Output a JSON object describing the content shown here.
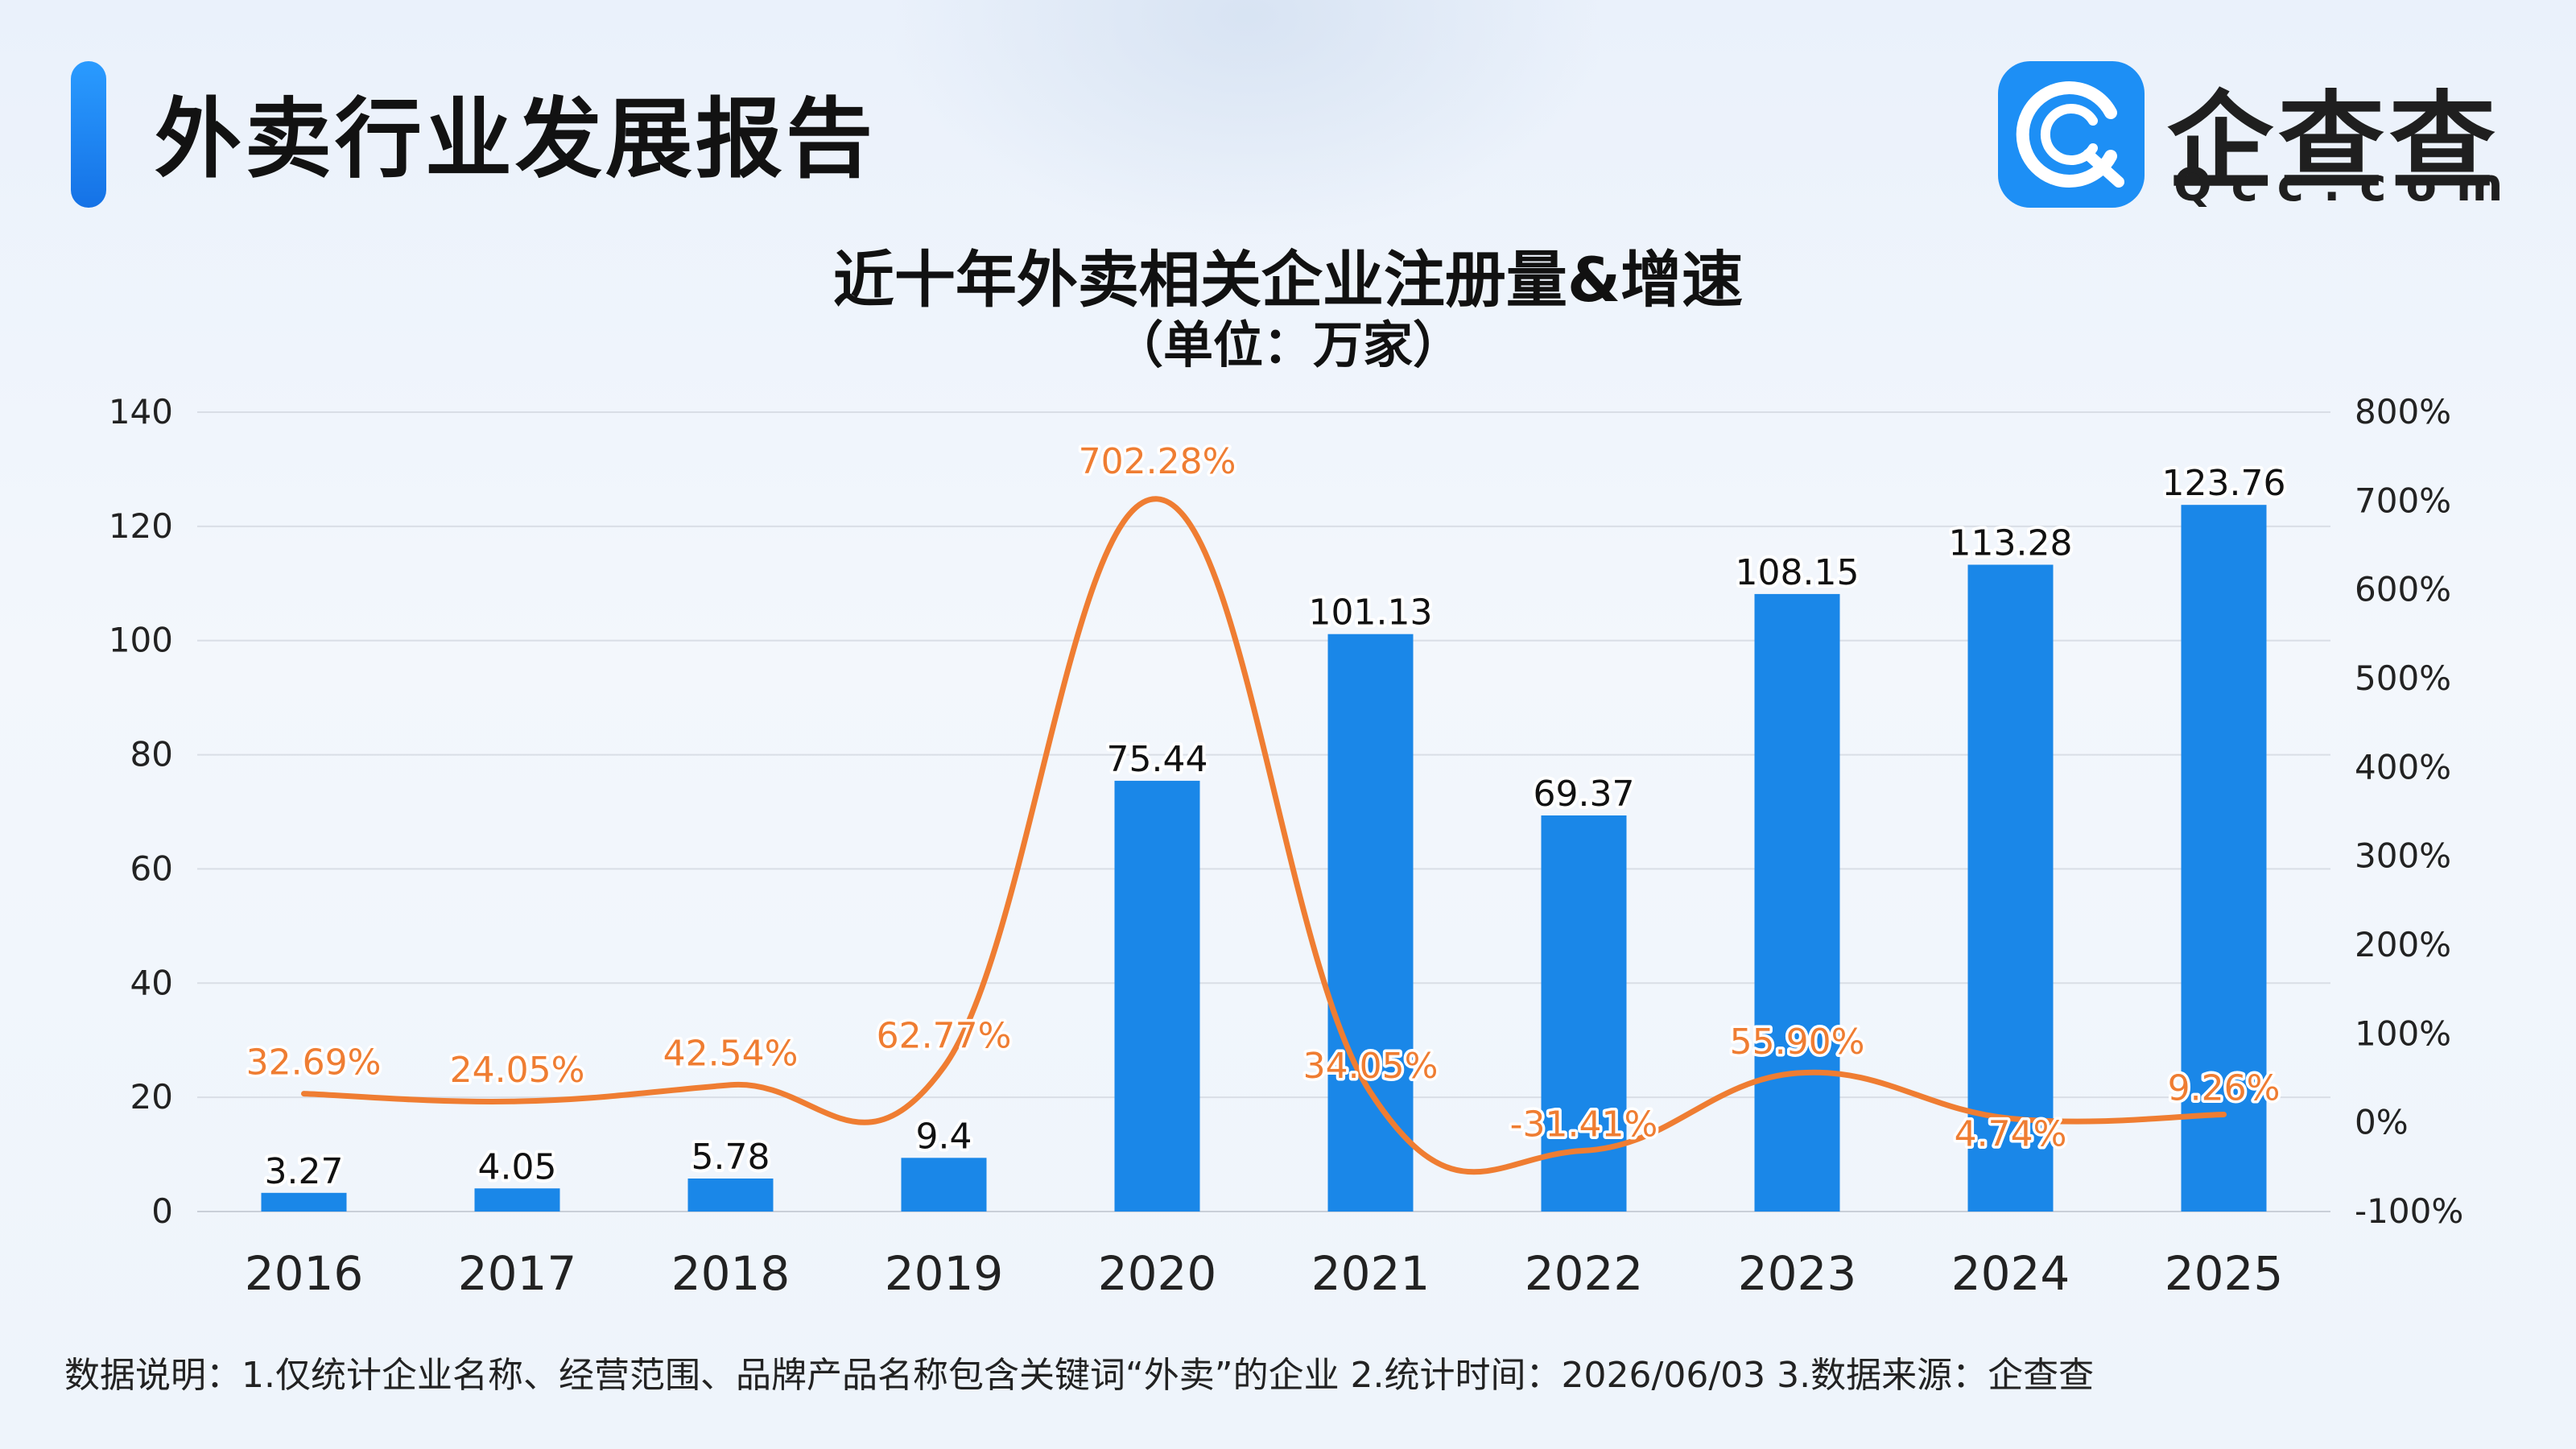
{
  "header": {
    "title": "外卖行业发展报告",
    "logo_cn": "企查查",
    "logo_en": "Qcc.com",
    "logo_icon": "qcc-logo-icon"
  },
  "chart_data": {
    "type": "bar",
    "title": "近十年外卖相关企业注册量&增速",
    "subtitle": "（单位：万家）",
    "categories": [
      "2016",
      "2017",
      "2018",
      "2019",
      "2020",
      "2021",
      "2022",
      "2023",
      "2024",
      "2025"
    ],
    "series": [
      {
        "name": "",
        "type": "bar",
        "axis": "left",
        "color": "#1a87e8",
        "values": [
          3.27,
          4.05,
          5.78,
          9.4,
          75.44,
          101.13,
          69.37,
          108.15,
          113.28,
          123.76
        ],
        "labels": [
          "3.27",
          "4.05",
          "5.78",
          "9.4",
          "75.44",
          "101.13",
          "69.37",
          "108.15",
          "113.28",
          "123.76"
        ]
      },
      {
        "name": "",
        "type": "line",
        "axis": "right",
        "color": "#ef7d32",
        "values": [
          32.69,
          24.05,
          42.54,
          62.77,
          702.28,
          34.05,
          -31.41,
          55.9,
          4.74,
          9.26
        ],
        "labels": [
          "32.69%",
          "24.05%",
          "42.54%",
          "62.77%",
          "702.28%",
          "34.05%",
          "-31.41%",
          "55.90%",
          "4.74%",
          "9.26%"
        ]
      }
    ],
    "ylim": [
      0,
      140
    ],
    "yticks": [
      "0",
      "20",
      "40",
      "60",
      "80",
      "100",
      "120",
      "140"
    ],
    "y2lim": [
      -100,
      800
    ],
    "y2ticks": [
      "-100%",
      "0%",
      "100%",
      "200%",
      "300%",
      "400%",
      "500%",
      "600%",
      "700%",
      "800%"
    ],
    "grid": true,
    "legend": "none"
  },
  "footnote": "数据说明：1.仅统计企业名称、经营范围、品牌产品名称包含关键词“外卖”的企业   2.统计时间：2026/06/03    3.数据来源：企查查"
}
